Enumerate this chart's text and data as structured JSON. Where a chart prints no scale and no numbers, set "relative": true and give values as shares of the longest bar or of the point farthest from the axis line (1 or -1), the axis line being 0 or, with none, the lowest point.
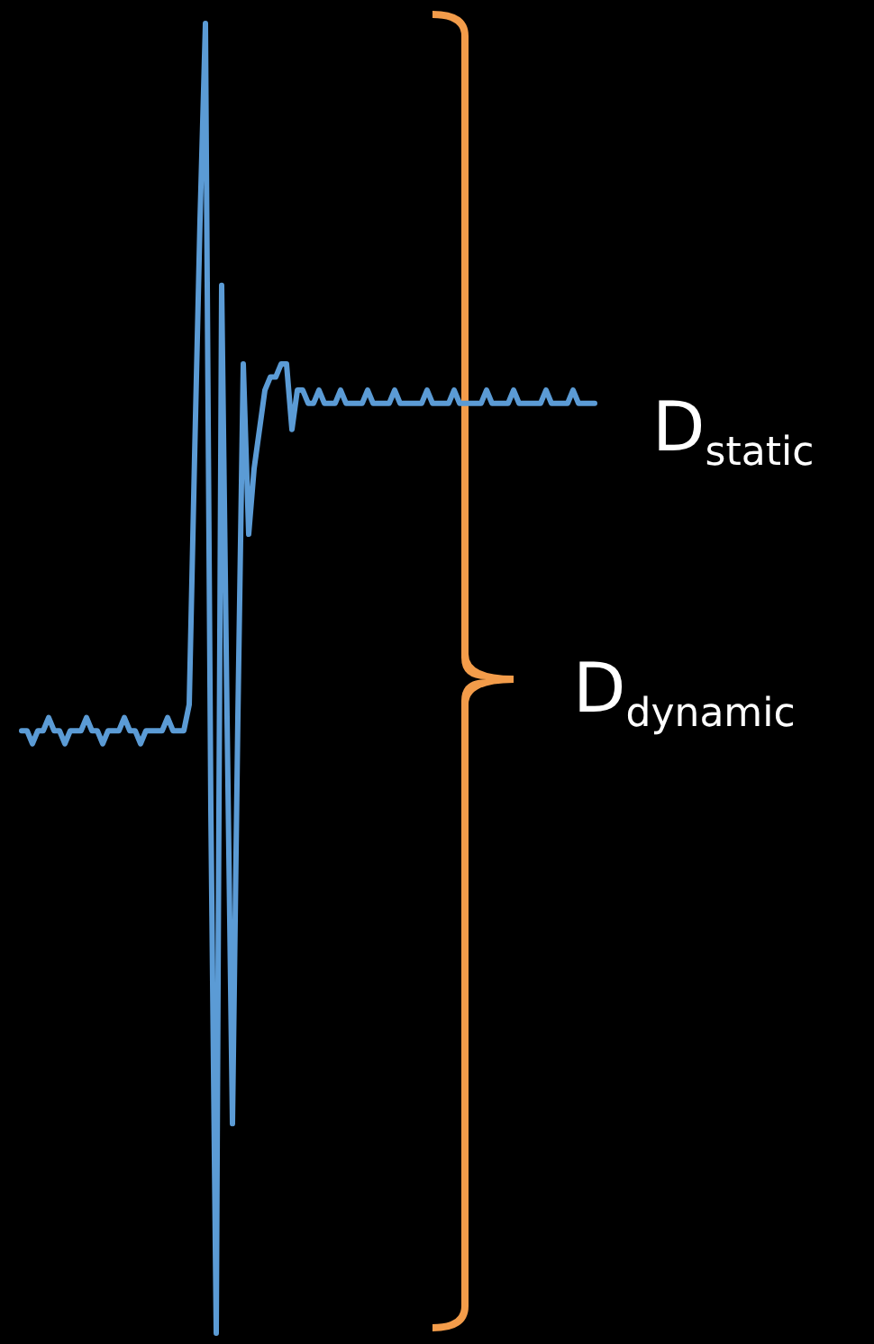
{
  "chart_data": {
    "type": "line",
    "relative": true,
    "categories": [
      null,
      null,
      null,
      null,
      null,
      null,
      null,
      null,
      null,
      null,
      null,
      null,
      null,
      null,
      null,
      null,
      null,
      null,
      null,
      null,
      null,
      null,
      null,
      null,
      null,
      null,
      null,
      null,
      null,
      null,
      null,
      null,
      null,
      null,
      null,
      null,
      null,
      null,
      null,
      null,
      null,
      null,
      null,
      null,
      null,
      null,
      null,
      null,
      null,
      null,
      null,
      null,
      null,
      null,
      null,
      null,
      null,
      null,
      null,
      null,
      null,
      null,
      null,
      null,
      null,
      null,
      null,
      null,
      null,
      null,
      null,
      null,
      null,
      null,
      null,
      null,
      null,
      null,
      null,
      null,
      null,
      null,
      null,
      null,
      null,
      null,
      null,
      null,
      null,
      null,
      null,
      null,
      null,
      null,
      null,
      null,
      null,
      null,
      null,
      null,
      null,
      null,
      null,
      null,
      null,
      null,
      null
    ],
    "series": [
      {
        "color": "#5b9bd5",
        "values": [
          0.46,
          0.46,
          0.45,
          0.46,
          0.46,
          0.47,
          0.46,
          0.46,
          0.45,
          0.46,
          0.46,
          0.46,
          0.47,
          0.46,
          0.46,
          0.45,
          0.46,
          0.46,
          0.46,
          0.47,
          0.46,
          0.46,
          0.45,
          0.46,
          0.46,
          0.46,
          0.46,
          0.47,
          0.46,
          0.46,
          0.46,
          0.48,
          0.67,
          0.85,
          1.0,
          0.4,
          0,
          0.8,
          0.47,
          0.16,
          0.47,
          0.74,
          0.61,
          0.66,
          0.69,
          0.72,
          0.73,
          0.73,
          0.74,
          0.74,
          0.69,
          0.72,
          0.72,
          0.71,
          0.71,
          0.72,
          0.71,
          0.71,
          0.71,
          0.72,
          0.71,
          0.71,
          0.71,
          0.71,
          0.72,
          0.71,
          0.71,
          0.71,
          0.71,
          0.72,
          0.71,
          0.71,
          0.71,
          0.71,
          0.71,
          0.72,
          0.71,
          0.71,
          0.71,
          0.71,
          0.72,
          0.71,
          0.71,
          0.71,
          0.71,
          0.71,
          0.72,
          0.71,
          0.71,
          0.71,
          0.71,
          0.72,
          0.71,
          0.71,
          0.71,
          0.71,
          0.71,
          0.72,
          0.71,
          0.71,
          0.71,
          0.71,
          0.72,
          0.71,
          0.71,
          0.71,
          0.71
        ]
      }
    ],
    "annotations": [
      "D$_{static}$",
      "D$_{dynamic}$"
    ]
  }
}
